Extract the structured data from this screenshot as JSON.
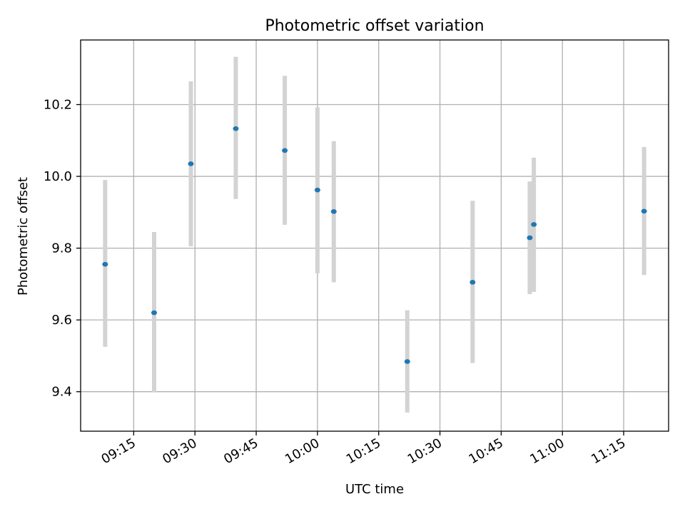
{
  "chart_data": {
    "type": "scatter",
    "title": "Photometric offset variation",
    "xlabel": "UTC time",
    "ylabel": "Photometric offset",
    "x_ticks": [
      "09:15",
      "09:30",
      "09:45",
      "10:00",
      "10:15",
      "10:30",
      "10:45",
      "11:00",
      "11:15"
    ],
    "y_ticks": [
      "9.4",
      "9.6",
      "9.8",
      "10.0",
      "10.2"
    ],
    "xlim": [
      "09:02",
      "11:26"
    ],
    "ylim": [
      9.29,
      10.38
    ],
    "grid": true,
    "colors": {
      "point": "#1f77b4",
      "errorbar": "#d3d3d3",
      "grid": "#b0b0b0"
    },
    "points": [
      {
        "time": "09:08",
        "y": 9.755,
        "err_low": 9.525,
        "err_high": 9.99
      },
      {
        "time": "09:20",
        "y": 9.62,
        "err_low": 9.398,
        "err_high": 9.845
      },
      {
        "time": "09:29",
        "y": 10.035,
        "err_low": 9.805,
        "err_high": 10.265
      },
      {
        "time": "09:40",
        "y": 10.133,
        "err_low": 9.937,
        "err_high": 10.333
      },
      {
        "time": "09:52",
        "y": 10.072,
        "err_low": 9.865,
        "err_high": 10.28
      },
      {
        "time": "10:00",
        "y": 9.962,
        "err_low": 9.73,
        "err_high": 10.192
      },
      {
        "time": "10:04",
        "y": 9.902,
        "err_low": 9.705,
        "err_high": 10.098
      },
      {
        "time": "10:22",
        "y": 9.484,
        "err_low": 9.342,
        "err_high": 9.627
      },
      {
        "time": "10:38",
        "y": 9.705,
        "err_low": 9.48,
        "err_high": 9.932
      },
      {
        "time": "10:52",
        "y": 9.829,
        "err_low": 9.672,
        "err_high": 9.986
      },
      {
        "time": "10:53",
        "y": 9.866,
        "err_low": 9.678,
        "err_high": 10.052
      },
      {
        "time": "11:20",
        "y": 9.903,
        "err_low": 9.725,
        "err_high": 10.082
      }
    ]
  }
}
